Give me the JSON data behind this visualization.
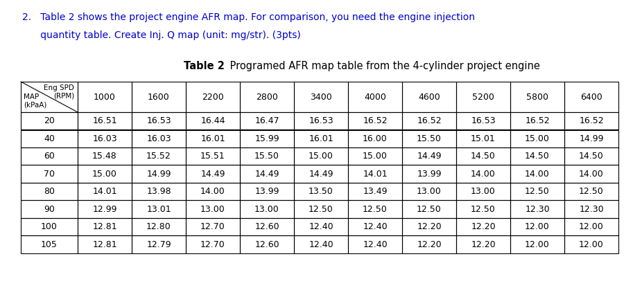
{
  "title_bold": "Table 2",
  "title_regular": " Programed AFR map table from the 4-cylinder project engine",
  "q_line1": "2.   Table 2 shows the project engine AFR map. For comparison, you need the engine injection",
  "q_line2": "      quantity table. Create Inj. Q map (unit: mg/str). (3pts)",
  "rpm_values": [
    1000,
    1600,
    2200,
    2800,
    3400,
    4000,
    4600,
    5200,
    5800,
    6400
  ],
  "map_values": [
    20,
    40,
    60,
    70,
    80,
    90,
    100,
    105
  ],
  "table_data": [
    [
      16.51,
      16.53,
      16.44,
      16.47,
      16.53,
      16.52,
      16.52,
      16.53,
      16.52,
      16.52
    ],
    [
      16.03,
      16.03,
      16.01,
      15.99,
      16.01,
      16.0,
      15.5,
      15.01,
      15.0,
      14.99
    ],
    [
      15.48,
      15.52,
      15.51,
      15.5,
      15.0,
      15.0,
      14.49,
      14.5,
      14.5,
      14.5
    ],
    [
      15.0,
      14.99,
      14.49,
      14.49,
      14.49,
      14.01,
      13.99,
      14.0,
      14.0,
      14.0
    ],
    [
      14.01,
      13.98,
      14.0,
      13.99,
      13.5,
      13.49,
      13.0,
      13.0,
      12.5,
      12.5
    ],
    [
      12.99,
      13.01,
      13.0,
      13.0,
      12.5,
      12.5,
      12.5,
      12.5,
      12.3,
      12.3
    ],
    [
      12.81,
      12.8,
      12.7,
      12.6,
      12.4,
      12.4,
      12.2,
      12.2,
      12.0,
      12.0
    ],
    [
      12.81,
      12.79,
      12.7,
      12.6,
      12.4,
      12.4,
      12.2,
      12.2,
      12.0,
      12.0
    ]
  ],
  "text_color": "#0000cc",
  "table_text_color": "#000000",
  "bg_color": "#ffffff",
  "border_color": "#000000",
  "fig_width": 9.13,
  "fig_height": 4.16,
  "dpi": 100
}
